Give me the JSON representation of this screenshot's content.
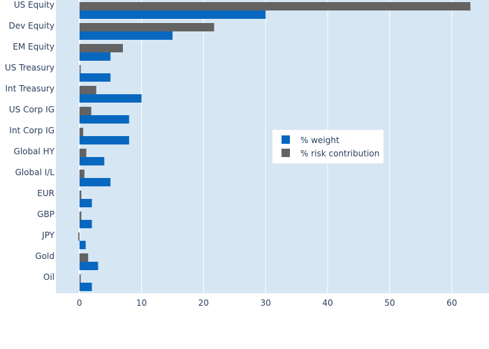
{
  "chart_data": {
    "type": "bar",
    "orientation": "horizontal",
    "categories": [
      "US Equity",
      "Dev Equity",
      "EM Equity",
      "US Treasury",
      "Int Treasury",
      "US Corp IG",
      "Int Corp IG",
      "Global HY",
      "Global I/L",
      "EUR",
      "GBP",
      "JPY",
      "Gold",
      "Oil"
    ],
    "series": [
      {
        "name": "% weight",
        "color": "#0868c0",
        "values": [
          30,
          15,
          5,
          5,
          10,
          8,
          8,
          4,
          5,
          2,
          2,
          1,
          3,
          2
        ]
      },
      {
        "name": "% risk contribution",
        "color": "#636363",
        "values": [
          63,
          21.7,
          7,
          0.2,
          2.7,
          1.9,
          0.6,
          1.1,
          0.8,
          0.3,
          0.3,
          -0.2,
          1.4,
          0.2
        ]
      }
    ],
    "xlim": [
      -3.8,
      66
    ],
    "xticks": [
      0,
      10,
      20,
      30,
      40,
      50,
      60
    ],
    "xlabel": "",
    "ylabel": "",
    "title": "",
    "grid": true,
    "legend_position": "right-center",
    "plot_bgcolor": "#d6e6f3",
    "grid_color": "#ffffff"
  }
}
